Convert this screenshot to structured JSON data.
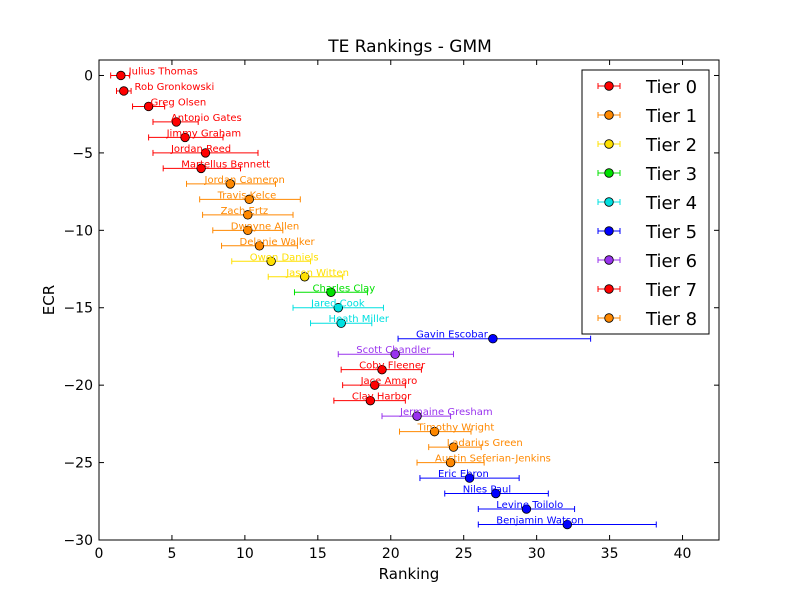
{
  "chart_data": {
    "type": "scatter",
    "title": "TE Rankings - GMM",
    "xlabel": "Ranking",
    "ylabel": "ECR",
    "xlim": [
      0,
      42.5
    ],
    "ylim": [
      -30,
      1
    ],
    "xticks": [
      0,
      5,
      10,
      15,
      20,
      25,
      30,
      35,
      40
    ],
    "yticks": [
      0,
      -5,
      -10,
      -15,
      -20,
      -25,
      -30
    ],
    "xtick_labels": [
      "0",
      "5",
      "10",
      "15",
      "20",
      "25",
      "30",
      "35",
      "40"
    ],
    "ytick_labels": [
      "0",
      "−5",
      "−10",
      "−15",
      "−20",
      "−25",
      "−30"
    ],
    "grid": false,
    "legend_position": "top-right",
    "tier_colors": [
      "#ff0000",
      "#ff8800",
      "#ffe000",
      "#00e000",
      "#00e0e0",
      "#0000ff",
      "#9933ee",
      "#ff0000",
      "#ff8800"
    ],
    "legend": [
      "Tier 0",
      "Tier 1",
      "Tier 2",
      "Tier 3",
      "Tier 4",
      "Tier 5",
      "Tier 6",
      "Tier 7",
      "Tier 8"
    ],
    "points": [
      {
        "name": "Julius Thomas",
        "x": 1.5,
        "y": 0,
        "xmin": 0.8,
        "xmax": 2.1,
        "tier": 0
      },
      {
        "name": "Rob Gronkowski",
        "x": 1.7,
        "y": -1,
        "xmin": 1.2,
        "xmax": 2.2,
        "tier": 0
      },
      {
        "name": "Greg Olsen",
        "x": 3.4,
        "y": -2,
        "xmin": 2.3,
        "xmax": 4.5,
        "tier": 0
      },
      {
        "name": "Antonio Gates",
        "x": 5.3,
        "y": -3,
        "xmin": 3.7,
        "xmax": 6.8,
        "tier": 0
      },
      {
        "name": "Jimmy Graham",
        "x": 5.9,
        "y": -4,
        "xmin": 3.4,
        "xmax": 8.5,
        "tier": 0
      },
      {
        "name": "Jordan Reed",
        "x": 7.3,
        "y": -5,
        "xmin": 3.7,
        "xmax": 10.9,
        "tier": 0
      },
      {
        "name": "Martellus Bennett",
        "x": 7.0,
        "y": -6,
        "xmin": 4.4,
        "xmax": 9.7,
        "tier": 0
      },
      {
        "name": "Jordan Cameron",
        "x": 9.0,
        "y": -7,
        "xmin": 6.0,
        "xmax": 12.1,
        "tier": 1
      },
      {
        "name": "Travis Kelce",
        "x": 10.3,
        "y": -8,
        "xmin": 6.9,
        "xmax": 13.8,
        "tier": 1
      },
      {
        "name": "Zach Ertz",
        "x": 10.2,
        "y": -9,
        "xmin": 7.1,
        "xmax": 13.3,
        "tier": 1
      },
      {
        "name": "Dwayne Allen",
        "x": 10.2,
        "y": -10,
        "xmin": 7.8,
        "xmax": 12.6,
        "tier": 1
      },
      {
        "name": "Delanie Walker",
        "x": 11.0,
        "y": -11,
        "xmin": 8.4,
        "xmax": 13.6,
        "tier": 1
      },
      {
        "name": "Owen Daniels",
        "x": 11.8,
        "y": -12,
        "xmin": 9.1,
        "xmax": 14.5,
        "tier": 2
      },
      {
        "name": "Jason Witten",
        "x": 14.1,
        "y": -13,
        "xmin": 11.6,
        "xmax": 16.7,
        "tier": 2
      },
      {
        "name": "Charles Clay",
        "x": 15.9,
        "y": -14,
        "xmin": 13.4,
        "xmax": 18.4,
        "tier": 3
      },
      {
        "name": "Jared Cook",
        "x": 16.4,
        "y": -15,
        "xmin": 13.3,
        "xmax": 19.5,
        "tier": 4
      },
      {
        "name": "Heath Miller",
        "x": 16.6,
        "y": -16,
        "xmin": 14.5,
        "xmax": 18.7,
        "tier": 4
      },
      {
        "name": "Gavin Escobar",
        "x": 27.0,
        "y": -17,
        "xmin": 20.5,
        "xmax": 33.7,
        "tier": 5
      },
      {
        "name": "Scott Chandler",
        "x": 20.3,
        "y": -18,
        "xmin": 16.4,
        "xmax": 24.3,
        "tier": 6
      },
      {
        "name": "Coby Fleener",
        "x": 19.4,
        "y": -19,
        "xmin": 16.6,
        "xmax": 22.1,
        "tier": 7
      },
      {
        "name": "Jace Amaro",
        "x": 18.9,
        "y": -20,
        "xmin": 16.7,
        "xmax": 21.0,
        "tier": 7
      },
      {
        "name": "Clay Harbor",
        "x": 18.6,
        "y": -21,
        "xmin": 16.1,
        "xmax": 21.0,
        "tier": 7
      },
      {
        "name": "Jermaine Gresham",
        "x": 21.8,
        "y": -22,
        "xmin": 19.4,
        "xmax": 24.1,
        "tier": 6
      },
      {
        "name": "Timothy Wright",
        "x": 23.0,
        "y": -23,
        "xmin": 20.6,
        "xmax": 25.5,
        "tier": 8
      },
      {
        "name": "Ladarius Green",
        "x": 24.3,
        "y": -24,
        "xmin": 22.6,
        "xmax": 26.2,
        "tier": 8
      },
      {
        "name": "Austin Seferian-Jenkins",
        "x": 24.1,
        "y": -25,
        "xmin": 21.8,
        "xmax": 26.4,
        "tier": 8
      },
      {
        "name": "Eric Ebron",
        "x": 25.4,
        "y": -26,
        "xmin": 22.0,
        "xmax": 28.8,
        "tier": 5
      },
      {
        "name": "Niles Paul",
        "x": 27.2,
        "y": -27,
        "xmin": 23.7,
        "xmax": 30.8,
        "tier": 5
      },
      {
        "name": "Levine Toilolo",
        "x": 29.3,
        "y": -28,
        "xmin": 26.0,
        "xmax": 32.6,
        "tier": 5
      },
      {
        "name": "Benjamin Watson",
        "x": 32.1,
        "y": -29,
        "xmin": 26.0,
        "xmax": 38.2,
        "tier": 5
      }
    ]
  }
}
